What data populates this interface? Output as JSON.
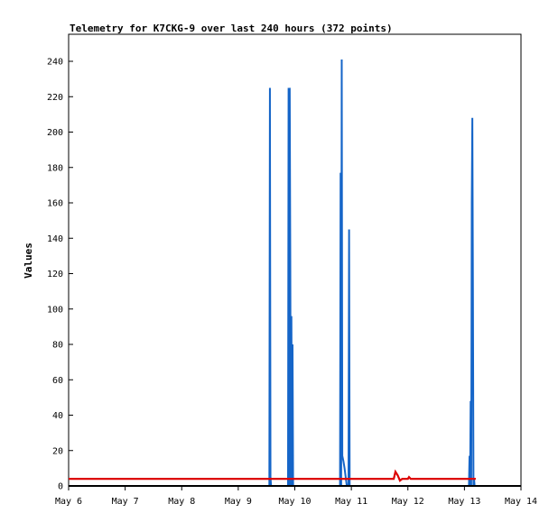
{
  "chart_data": {
    "type": "line",
    "title": "Telemetry for K7CKG-9 over last 240 hours (372 points)",
    "xlabel": "",
    "ylabel": "Values",
    "x_tick_labels": [
      "May 6",
      "May 7",
      "May 8",
      "May 9",
      "May 10",
      "May 11",
      "May 12",
      "May 13",
      "May 14"
    ],
    "xlim": [
      0,
      8
    ],
    "ylim": [
      0,
      255
    ],
    "y_ticks": [
      0,
      20,
      40,
      60,
      80,
      100,
      120,
      140,
      160,
      180,
      200,
      220,
      240
    ],
    "grid": false,
    "colors": {
      "series_blue": "#1565c8",
      "series_red": "#dd0000",
      "series_black": "#000000"
    },
    "series": [
      {
        "color": "#1565c8",
        "points": [
          [
            0,
            0
          ],
          [
            3.55,
            0
          ],
          [
            3.56,
            225
          ],
          [
            3.57,
            0
          ],
          [
            3.57,
            5
          ],
          [
            3.58,
            0
          ],
          [
            3.88,
            0
          ],
          [
            3.89,
            225
          ],
          [
            3.9,
            0
          ],
          [
            3.91,
            225
          ],
          [
            3.92,
            128
          ],
          [
            3.93,
            0
          ],
          [
            3.94,
            96
          ],
          [
            3.95,
            0
          ],
          [
            3.96,
            80
          ],
          [
            3.97,
            0
          ],
          [
            4.8,
            0
          ],
          [
            4.81,
            177
          ],
          [
            4.82,
            0
          ],
          [
            4.83,
            241
          ],
          [
            4.84,
            17
          ],
          [
            4.86,
            14
          ],
          [
            4.88,
            10
          ],
          [
            4.9,
            5
          ],
          [
            4.92,
            0
          ],
          [
            4.95,
            0
          ],
          [
            4.96,
            145
          ],
          [
            4.97,
            0
          ],
          [
            7.08,
            0
          ],
          [
            7.09,
            17
          ],
          [
            7.1,
            0
          ],
          [
            7.11,
            48
          ],
          [
            7.12,
            0
          ],
          [
            7.13,
            160
          ],
          [
            7.14,
            208
          ],
          [
            7.15,
            112
          ],
          [
            7.16,
            0
          ],
          [
            7.17,
            4
          ],
          [
            7.18,
            0
          ]
        ]
      },
      {
        "color": "#dd0000",
        "points": [
          [
            0,
            4
          ],
          [
            5.75,
            4
          ],
          [
            5.78,
            8
          ],
          [
            5.82,
            6
          ],
          [
            5.86,
            3
          ],
          [
            5.9,
            4
          ],
          [
            6.0,
            4
          ],
          [
            6.02,
            5
          ],
          [
            6.05,
            4
          ],
          [
            7.2,
            4
          ]
        ]
      },
      {
        "color": "#000000",
        "points": [
          [
            0,
            0
          ],
          [
            8,
            0
          ]
        ]
      }
    ]
  }
}
